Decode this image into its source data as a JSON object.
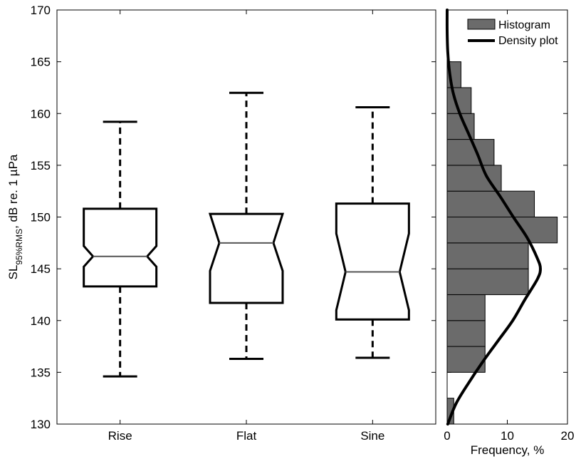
{
  "chart_data": [
    {
      "type": "boxplot",
      "notched": true,
      "categories": [
        "Rise",
        "Flat",
        "Sine"
      ],
      "series": [
        {
          "category": "Rise",
          "whisker_low": 134.6,
          "q1": 143.3,
          "notch_low": 145.2,
          "median": 146.2,
          "notch_high": 147.2,
          "q3": 150.8,
          "whisker_high": 159.2
        },
        {
          "category": "Flat",
          "whisker_low": 136.3,
          "q1": 141.7,
          "notch_low": 144.8,
          "median": 147.5,
          "notch_high": 150.3,
          "q3": 150.3,
          "whisker_high": 162.0
        },
        {
          "category": "Sine",
          "whisker_low": 136.4,
          "q1": 140.1,
          "notch_low": 141.0,
          "median": 144.7,
          "notch_high": 148.4,
          "q3": 151.3,
          "whisker_high": 160.6
        }
      ],
      "ylabel_main": "SL",
      "ylabel_sub": "95%RMS",
      "ylabel_rest": ", dB re. 1 µPa",
      "ylim": [
        130,
        170
      ],
      "yticks": [
        "130",
        "135",
        "140",
        "145",
        "150",
        "155",
        "160",
        "165",
        "170"
      ],
      "grid": false
    },
    {
      "type": "histogram",
      "orientation": "horizontal",
      "bins": [
        {
          "low": 130.0,
          "high": 132.5,
          "value": 1.1
        },
        {
          "low": 132.5,
          "high": 135.0,
          "value": 0.0
        },
        {
          "low": 135.0,
          "high": 137.5,
          "value": 6.3
        },
        {
          "low": 137.5,
          "high": 140.0,
          "value": 6.3
        },
        {
          "low": 140.0,
          "high": 142.5,
          "value": 6.3
        },
        {
          "low": 142.5,
          "high": 145.0,
          "value": 13.5
        },
        {
          "low": 145.0,
          "high": 147.5,
          "value": 13.5
        },
        {
          "low": 147.5,
          "high": 150.0,
          "value": 18.3
        },
        {
          "low": 150.0,
          "high": 152.5,
          "value": 14.5
        },
        {
          "low": 152.5,
          "high": 155.0,
          "value": 9.0
        },
        {
          "low": 155.0,
          "high": 157.5,
          "value": 7.8
        },
        {
          "low": 157.5,
          "high": 160.0,
          "value": 4.5
        },
        {
          "low": 160.0,
          "high": 162.5,
          "value": 4.0
        },
        {
          "low": 162.5,
          "high": 165.0,
          "value": 2.3
        }
      ],
      "density": {
        "y": [
          130,
          132,
          134,
          136,
          138,
          140,
          142,
          144,
          145,
          146,
          148,
          150,
          152,
          154,
          156,
          158,
          160,
          162,
          164,
          166,
          168,
          170
        ],
        "x": [
          0.1,
          1.5,
          3.6,
          5.9,
          8.4,
          10.9,
          12.9,
          15.0,
          15.5,
          15.0,
          13.3,
          11.0,
          8.8,
          6.5,
          5.1,
          3.6,
          2.1,
          1.0,
          0.4,
          0.1,
          0.0,
          0.0
        ]
      },
      "legend": [
        "Histogram",
        "Density plot"
      ],
      "legend_position": "top-right",
      "xlabel": "Frequency, %",
      "xlim": [
        0,
        20
      ],
      "xticks": [
        "0",
        "10",
        "20"
      ],
      "ylim": [
        130,
        170
      ],
      "colors": {
        "bar_fill": "#6b6b6b",
        "bar_edge": "#000000",
        "line": "#000000"
      }
    }
  ]
}
